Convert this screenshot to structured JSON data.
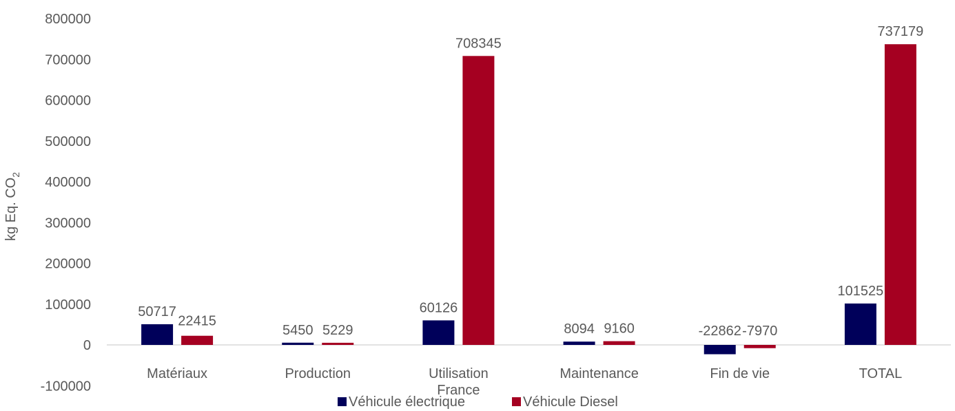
{
  "chart_data": {
    "type": "bar",
    "title": "",
    "xlabel": "",
    "ylabel": "kg Eq. CO",
    "ylabel_subscript": "2",
    "ylim": [
      -100000,
      800000
    ],
    "y_ticks": [
      "800000",
      "700000",
      "600000",
      "500000",
      "400000",
      "300000",
      "200000",
      "100000",
      "0",
      "-100000"
    ],
    "categories": [
      [
        "Matériaux"
      ],
      [
        "Production"
      ],
      [
        "Utilisation",
        "France"
      ],
      [
        "Maintenance"
      ],
      [
        "Fin de vie"
      ],
      [
        "TOTAL"
      ]
    ],
    "series": [
      {
        "name": "Véhicule électrique",
        "color": "#00005a",
        "values": [
          50717,
          5450,
          60126,
          8094,
          -22862,
          101525
        ],
        "labels": [
          "50717",
          "5450",
          "60126",
          "8094",
          "-22862",
          "101525"
        ]
      },
      {
        "name": "Véhicule Diesel",
        "color": "#a50021",
        "values": [
          22415,
          5229,
          708345,
          9160,
          -7970,
          737179
        ],
        "labels": [
          "22415",
          "5229",
          "708345",
          "9160",
          "-7970",
          "737179"
        ]
      }
    ],
    "grid": false,
    "legend_position": "bottom"
  }
}
